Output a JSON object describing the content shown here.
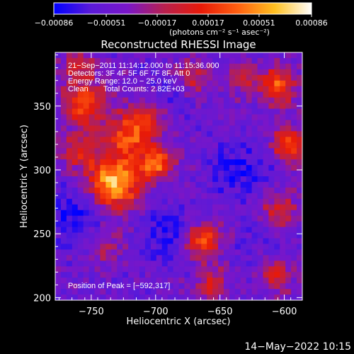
{
  "chart_data": {
    "type": "heatmap",
    "title": "Reconstructed RHESSI Image",
    "xlabel": "Heliocentric X (arcsec)",
    "ylabel": "Heliocentric Y (arcsec)",
    "xlim": [
      -778,
      -586
    ],
    "ylim": [
      198,
      392
    ],
    "x_ticks": [
      -750,
      -700,
      -650,
      -600
    ],
    "x_tick_labels": [
      "−750",
      "−700",
      "−650",
      "−600"
    ],
    "y_ticks": [
      200,
      250,
      300,
      350
    ],
    "y_tick_labels": [
      "200",
      "250",
      "300",
      "350"
    ],
    "colorbar": {
      "range": [
        -0.00086,
        0.00086
      ],
      "ticks": [
        -0.00086,
        -0.00051,
        -0.00017,
        0.00017,
        0.00051,
        0.00086
      ],
      "tick_labels": [
        "−0.00086",
        "−0.00051",
        "−0.00017",
        "0.00017",
        "0.00051",
        "0.00086"
      ],
      "units": "(photons cm⁻² s⁻¹ asec⁻²)",
      "colors": [
        "#0000ff",
        "#5a1ad8",
        "#7a16c8",
        "#b8204e",
        "#e81a08",
        "#ff6010",
        "#ffc020",
        "#ffffff"
      ]
    },
    "annotations": {
      "time": "21−Sep−2011 11:14:12.000 to 11:15:36.000",
      "detectors": "Detectors: 3F 4F 5F 6F 7F 8F, Att 0",
      "energy": "Energy Range: 12.0 − 25.0 keV",
      "method": "Clean",
      "counts": "Total Counts: 2.82E+03",
      "peak": "Position of Peak = [−592,317]"
    },
    "peak_position": [
      -592,
      317
    ]
  },
  "footer": {
    "date": "14−May−2022 10:15"
  }
}
